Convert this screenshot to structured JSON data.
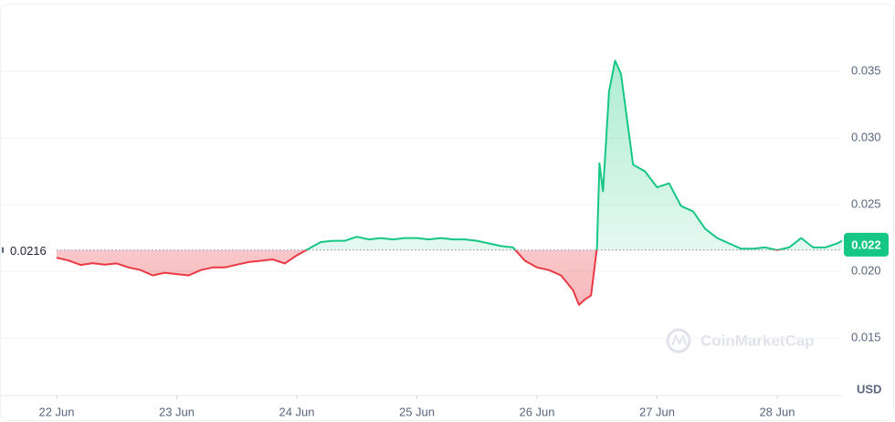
{
  "chart_data": {
    "type": "line",
    "currency": "USD",
    "watermark": "CoinMarketCap",
    "reference": {
      "value": 0.0216,
      "label": "0.0216"
    },
    "current": {
      "value": 0.022,
      "label": "0.022"
    },
    "colors": {
      "above": "#16c784",
      "below": "#ea3943"
    },
    "grid": true,
    "xlim": [
      22,
      28.54
    ],
    "xticks": [
      {
        "value": 22,
        "label": "22 Jun"
      },
      {
        "value": 23,
        "label": "23 Jun"
      },
      {
        "value": 24,
        "label": "24 Jun"
      },
      {
        "value": 25,
        "label": "25 Jun"
      },
      {
        "value": 26,
        "label": "26 Jun"
      },
      {
        "value": 27,
        "label": "27 Jun"
      },
      {
        "value": 28,
        "label": "28 Jun"
      }
    ],
    "ylim": [
      0.0107,
      0.04
    ],
    "yticks": [
      0.015,
      {
        "value": 0.02,
        "label": "0.020"
      },
      0.025,
      {
        "value": 0.03,
        "label": "0.030"
      },
      0.035
    ],
    "x": [
      22.0,
      22.1,
      22.2,
      22.3,
      22.4,
      22.5,
      22.6,
      22.7,
      22.8,
      22.9,
      23.0,
      23.1,
      23.2,
      23.3,
      23.4,
      23.5,
      23.6,
      23.7,
      23.8,
      23.9,
      24.0,
      24.1,
      24.2,
      24.3,
      24.4,
      24.5,
      24.6,
      24.7,
      24.8,
      24.9,
      25.0,
      25.1,
      25.2,
      25.3,
      25.4,
      25.5,
      25.6,
      25.7,
      25.8,
      25.9,
      26.0,
      26.1,
      26.2,
      26.3,
      26.35,
      26.4,
      26.45,
      26.5,
      26.52,
      26.55,
      26.6,
      26.65,
      26.7,
      26.8,
      26.9,
      27.0,
      27.1,
      27.2,
      27.3,
      27.4,
      27.5,
      27.6,
      27.7,
      27.8,
      27.9,
      28.0,
      28.1,
      28.2,
      28.3,
      28.4,
      28.5,
      28.54
    ],
    "values": [
      0.02103,
      0.02082,
      0.02048,
      0.02062,
      0.0205,
      0.0206,
      0.0203,
      0.0201,
      0.0197,
      0.0199,
      0.0198,
      0.0197,
      0.0201,
      0.0203,
      0.0203,
      0.0205,
      0.0207,
      0.0208,
      0.0209,
      0.0206,
      0.0212,
      0.0217,
      0.0222,
      0.0223,
      0.0223,
      0.0226,
      0.0224,
      0.0225,
      0.0224,
      0.0225,
      0.0225,
      0.0224,
      0.0225,
      0.0224,
      0.0224,
      0.0223,
      0.0221,
      0.0219,
      0.0218,
      0.0208,
      0.0203,
      0.0201,
      0.0197,
      0.0186,
      0.0175,
      0.0179,
      0.0182,
      0.0218,
      0.0281,
      0.026,
      0.0335,
      0.0358,
      0.0348,
      0.028,
      0.0275,
      0.0263,
      0.0266,
      0.0249,
      0.0245,
      0.0232,
      0.0225,
      0.0221,
      0.0217,
      0.0217,
      0.0218,
      0.0216,
      0.0218,
      0.0225,
      0.0218,
      0.0218,
      0.0221,
      0.0223
    ]
  }
}
